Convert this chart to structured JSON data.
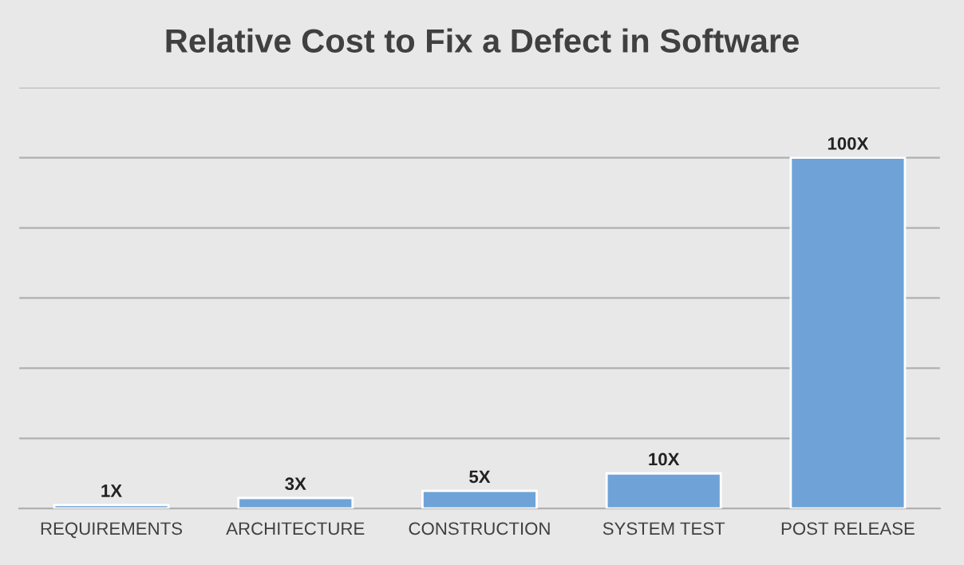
{
  "chart_data": {
    "type": "bar",
    "title": "Relative Cost to Fix a Defect in Software",
    "categories": [
      "REQUIREMENTS",
      "ARCHITECTURE",
      "CONSTRUCTION",
      "SYSTEM TEST",
      "POST RELEASE"
    ],
    "values": [
      1,
      3,
      5,
      10,
      100
    ],
    "value_labels": [
      "1X",
      "3X",
      "5X",
      "10X",
      "100X"
    ],
    "color": "#6fa3d8",
    "ylim": [
      0,
      120
    ],
    "yticks": [
      {
        "value": 0,
        "label": null
      },
      {
        "value": 20,
        "label": null
      },
      {
        "value": 40,
        "label": null
      },
      {
        "value": 60,
        "label": null
      },
      {
        "value": 80,
        "label": null
      },
      {
        "value": 100,
        "label": null
      },
      {
        "value": 120,
        "label": null
      }
    ],
    "grid": "y"
  }
}
